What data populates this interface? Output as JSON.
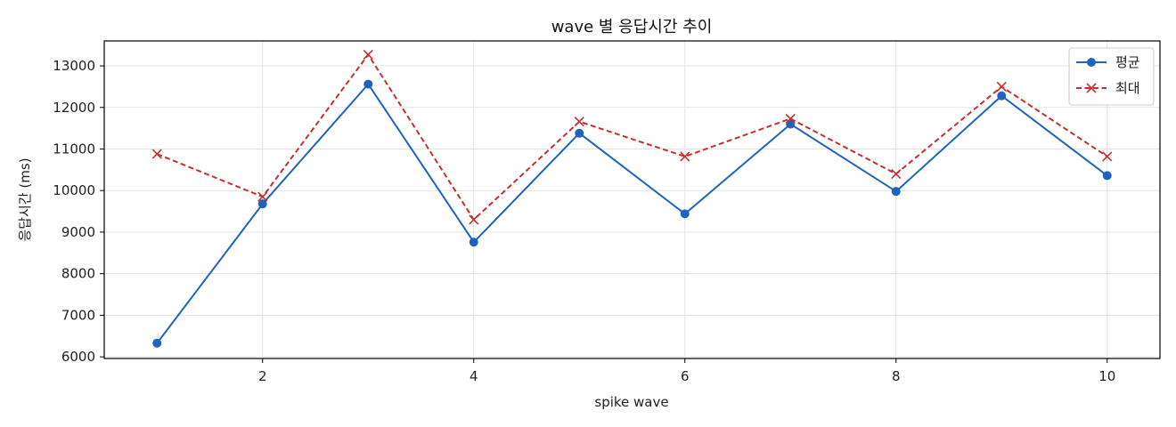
{
  "chart_data": {
    "type": "line",
    "title": "wave 별 응답시간 추이",
    "xlabel": "spike wave",
    "ylabel": "응답시간 (ms)",
    "x": [
      1,
      2,
      3,
      4,
      5,
      6,
      7,
      8,
      9,
      10
    ],
    "xlim": [
      0.5,
      10.5
    ],
    "ylim": [
      5960,
      13600
    ],
    "xticks": [
      2,
      4,
      6,
      8,
      10
    ],
    "yticks": [
      6000,
      7000,
      8000,
      9000,
      10000,
      11000,
      12000,
      13000
    ],
    "grid": true,
    "legend_position": "top-right",
    "series": [
      {
        "name": "평균",
        "color": "#1f63bd",
        "line_style": "solid",
        "marker": "circle",
        "values": [
          6330,
          9680,
          12560,
          8760,
          11380,
          9440,
          11600,
          9980,
          12280,
          10360
        ]
      },
      {
        "name": "최대",
        "color": "#c62f2f",
        "line_style": "dashed",
        "marker": "x",
        "values": [
          10880,
          9850,
          13270,
          9300,
          11660,
          10820,
          11730,
          10400,
          12500,
          10820
        ]
      }
    ]
  }
}
